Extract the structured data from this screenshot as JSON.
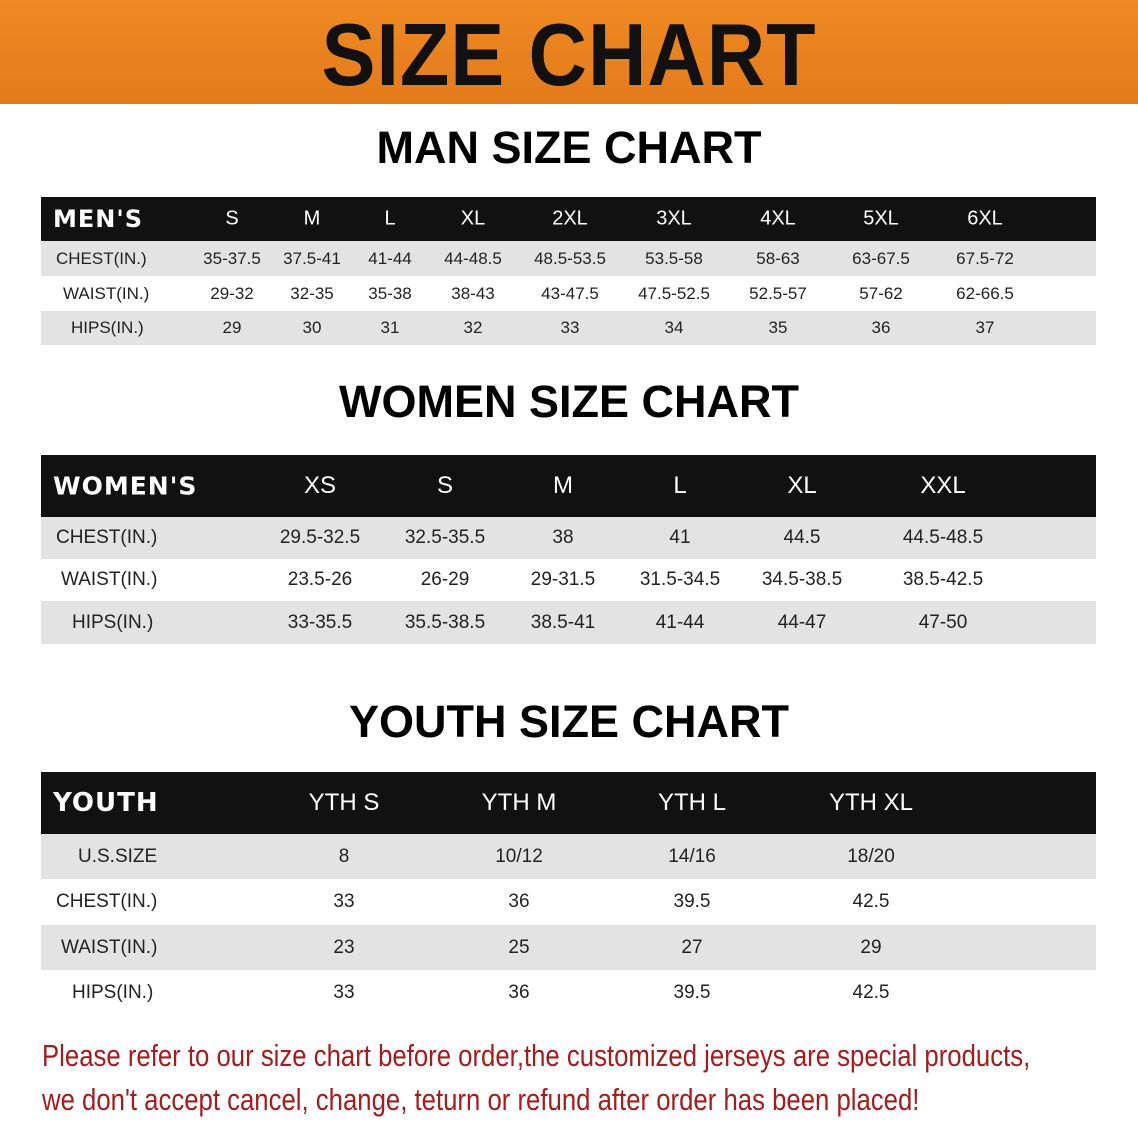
{
  "banner_title": "SIZE CHART",
  "accent_color": "#e8801f",
  "men": {
    "title": "MAN SIZE CHART",
    "header": [
      "MEN'S",
      "S",
      "M",
      "L",
      "XL",
      "2XL",
      "3XL",
      "4XL",
      "5XL",
      "6XL"
    ],
    "rows": [
      [
        "CHEST(IN.)",
        "35-37.5",
        "37.5-41",
        "41-44",
        "44-48.5",
        "48.5-53.5",
        "53.5-58",
        "58-63",
        "63-67.5",
        "67.5-72"
      ],
      [
        "WAIST(IN.)",
        "29-32",
        "32-35",
        "35-38",
        "38-43",
        "43-47.5",
        "47.5-52.5",
        "52.5-57",
        "57-62",
        "62-66.5"
      ],
      [
        "HIPS(IN.)",
        "29",
        "30",
        "31",
        "32",
        "33",
        "34",
        "35",
        "36",
        "37"
      ]
    ]
  },
  "women": {
    "title": "WOMEN SIZE CHART",
    "header": [
      "WOMEN'S",
      "XS",
      "S",
      "M",
      "L",
      "XL",
      "XXL"
    ],
    "rows": [
      [
        "CHEST(IN.)",
        "29.5-32.5",
        "32.5-35.5",
        "38",
        "41",
        "44.5",
        "44.5-48.5"
      ],
      [
        "WAIST(IN.)",
        "23.5-26",
        "26-29",
        "29-31.5",
        "31.5-34.5",
        "34.5-38.5",
        "38.5-42.5"
      ],
      [
        "HIPS(IN.)",
        "33-35.5",
        "35.5-38.5",
        "38.5-41",
        "41-44",
        "44-47",
        "47-50"
      ]
    ]
  },
  "youth": {
    "title": "YOUTH SIZE CHART",
    "header": [
      "YOUTH",
      "YTH S",
      "YTH M",
      "YTH L",
      "YTH XL"
    ],
    "rows": [
      [
        "U.S.SIZE",
        "8",
        "10/12",
        "14/16",
        "18/20"
      ],
      [
        "CHEST(IN.)",
        "33",
        "36",
        "39.5",
        "42.5"
      ],
      [
        "WAIST(IN.)",
        "23",
        "25",
        "27",
        "29"
      ],
      [
        "HIPS(IN.)",
        "33",
        "36",
        "39.5",
        "42.5"
      ]
    ]
  },
  "notice": {
    "line1": "Please refer to our size chart before order,the customized jerseys are special products,",
    "line2": "we don't accept cancel, change, teturn or refund after order has been placed!"
  }
}
